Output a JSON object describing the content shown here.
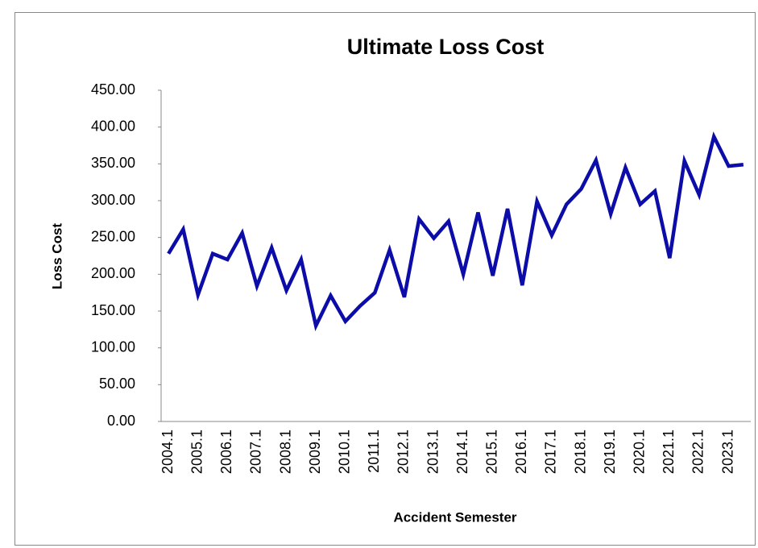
{
  "chart_data": {
    "type": "line",
    "title": "Ultimate Loss Cost",
    "x_label": "Accident Semester",
    "y_label": "Loss Cost",
    "categories": [
      "2004.1",
      null,
      "2005.1",
      null,
      "2006.1",
      null,
      "2007.1",
      null,
      "2008.1",
      null,
      "2009.1",
      null,
      "2010.1",
      null,
      "2011.1",
      null,
      "2012.1",
      null,
      "2013.1",
      null,
      "2014.1",
      null,
      "2015.1",
      null,
      "2016.1",
      null,
      "2017.1",
      null,
      "2018.1",
      null,
      "2019.1",
      null,
      "2020.1",
      null,
      "2021.1",
      null,
      "2022.1",
      null,
      "2023.1",
      null
    ],
    "series": [
      {
        "name": "Loss Cost",
        "color": "#0c0ca8",
        "values": [
          228,
          261,
          172,
          228,
          220,
          256,
          184,
          236,
          178,
          220,
          130,
          171,
          136,
          157,
          175,
          233,
          169,
          275,
          249,
          272,
          200,
          284,
          198,
          289,
          185,
          299,
          253,
          295,
          316,
          355,
          282,
          345,
          295,
          313,
          222,
          354,
          308,
          387,
          347,
          349
        ]
      }
    ],
    "ylim": [
      0,
      450
    ],
    "yticks": [
      {
        "value": 0,
        "label": "0.00"
      },
      {
        "value": 50,
        "label": "50.00"
      },
      {
        "value": 100,
        "label": "100.00"
      },
      {
        "value": 150,
        "label": "150.00"
      },
      {
        "value": 200,
        "label": "200.00"
      },
      {
        "value": 250,
        "label": "250.00"
      },
      {
        "value": 300,
        "label": "300.00"
      },
      {
        "value": 350,
        "label": "350.00"
      },
      {
        "value": 400,
        "label": "400.00"
      },
      {
        "value": 450,
        "label": "450.00"
      }
    ],
    "grid": false
  }
}
